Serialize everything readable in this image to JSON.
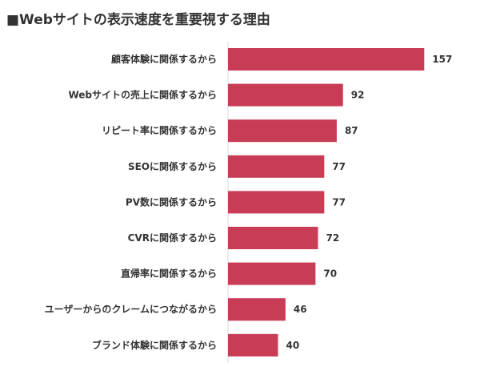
{
  "title": "■Webサイトの表示速度を重要視する理由",
  "colors": {
    "bar": "#c83c55",
    "axis": "#d9d9d9",
    "text": "#333333"
  },
  "chart_data": {
    "type": "bar",
    "orientation": "horizontal",
    "title": "■Webサイトの表示速度を重要視する理由",
    "categories": [
      "顧客体験に関係するから",
      "Webサイトの売上に関係するから",
      "リピート率に関係するから",
      "SEOに関係するから",
      "PV数に関係するから",
      "CVRに関係するから",
      "直帰率に関係するから",
      "ユーザーからのクレームにつながるから",
      "ブランド体験に関係するから"
    ],
    "values": [
      157,
      92,
      87,
      77,
      77,
      72,
      70,
      46,
      40
    ],
    "xlim": [
      0,
      160
    ],
    "grid": false,
    "data_labels": true
  }
}
